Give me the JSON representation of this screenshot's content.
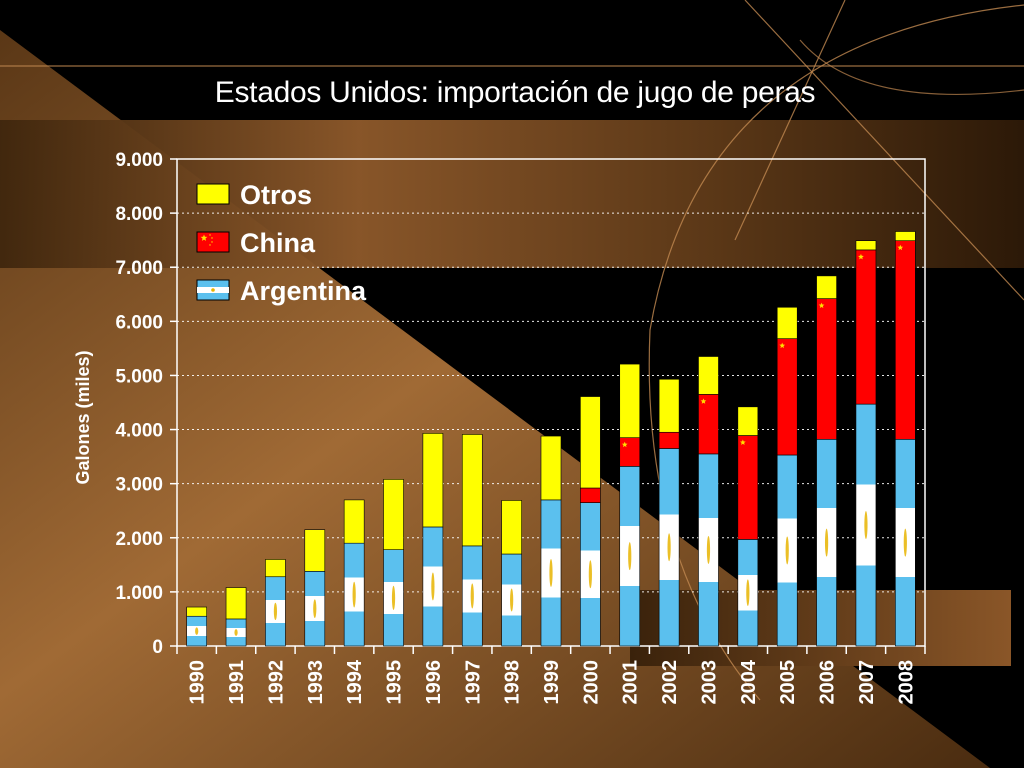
{
  "slide": {
    "title": "Estados Unidos:  importación de jugo de peras"
  },
  "colors": {
    "otros": "#ffff00",
    "china": "#ff0000",
    "argentina_blue": "#5bc0ee",
    "argentina_white": "#ffffff",
    "argentina_sun": "#e8b400",
    "china_star": "#ffde00",
    "background_brown": "#8f5a2b",
    "background_dark": "#000000",
    "axis": "#ffffff"
  },
  "chart_data": {
    "type": "bar",
    "stacked": true,
    "title": "Estados Unidos:  importación de jugo de peras",
    "xlabel": "",
    "ylabel": "Galones (miles)",
    "ylim": [
      0,
      9000
    ],
    "yticks": [
      0,
      1000,
      2000,
      3000,
      4000,
      5000,
      6000,
      7000,
      8000,
      9000
    ],
    "ytick_labels": [
      "0",
      "1.000",
      "2.000",
      "3.000",
      "4.000",
      "5.000",
      "6.000",
      "7.000",
      "8.000",
      "9.000"
    ],
    "grid": "horizontal dotted",
    "legend_position": "top-left",
    "categories": [
      "1990",
      "1991",
      "1992",
      "1993",
      "1994",
      "1995",
      "1996",
      "1997",
      "1998",
      "1999",
      "2000",
      "2001",
      "2002",
      "2003",
      "2004",
      "2005",
      "2006",
      "2007",
      "2008"
    ],
    "series": [
      {
        "name": "Argentina",
        "values": [
          550,
          500,
          1280,
          1380,
          1900,
          1780,
          2200,
          1850,
          1700,
          2700,
          2650,
          3320,
          3650,
          3550,
          1970,
          3530,
          3820,
          4470,
          3820
        ]
      },
      {
        "name": "China",
        "values": [
          0,
          0,
          0,
          0,
          0,
          0,
          0,
          0,
          0,
          0,
          270,
          530,
          300,
          1100,
          1920,
          2150,
          2600,
          2850,
          3670
        ]
      },
      {
        "name": "Otros",
        "values": [
          170,
          580,
          320,
          770,
          800,
          1300,
          1730,
          2060,
          990,
          1180,
          1690,
          1360,
          980,
          700,
          530,
          580,
          420,
          170,
          170
        ]
      }
    ],
    "legend_order": [
      "Otros",
      "China",
      "Argentina"
    ]
  }
}
